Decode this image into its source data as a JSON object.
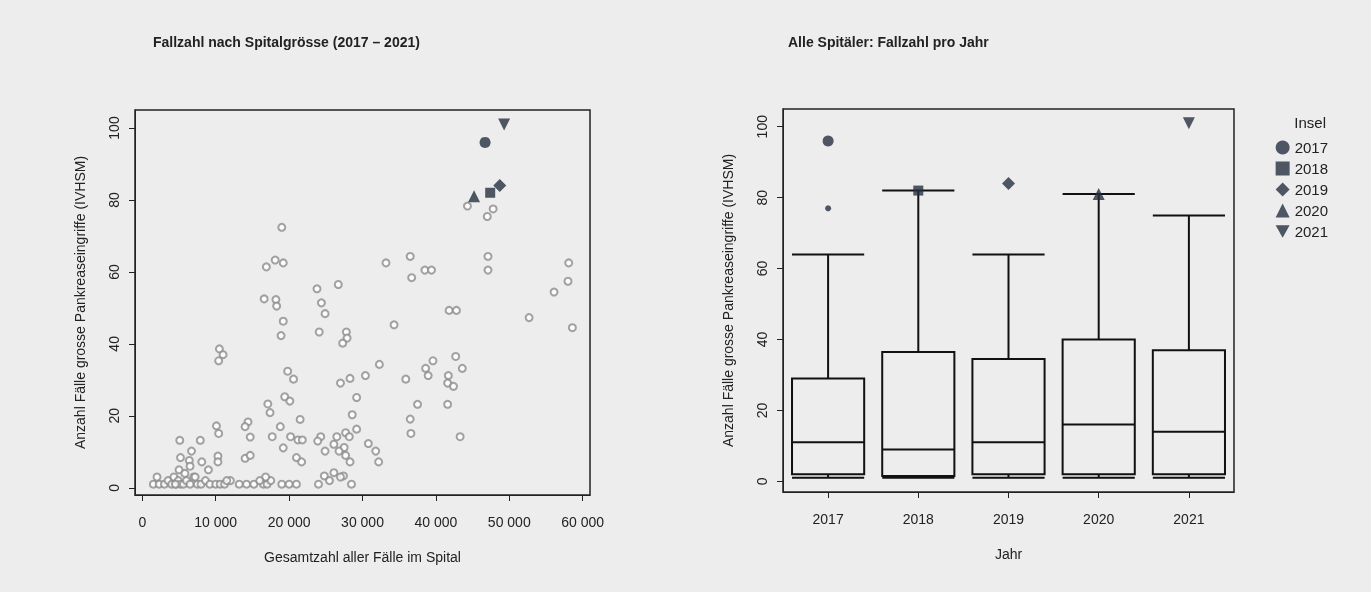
{
  "chart_data": [
    {
      "type": "scatter",
      "title": "Fallzahl nach Spitalgrösse (2017 – 2021)",
      "xlabel": "Gesamtzahl aller Fälle im Spital",
      "ylabel": "Anzahl Fälle grosse Pankreaseingriffe (IVHSM)",
      "xlim": [
        -1000,
        61000
      ],
      "ylim": [
        -2,
        105
      ],
      "xticks": [
        0,
        {
          "value": 10000,
          "label": "10 000"
        },
        {
          "value": 20000,
          "label": "20 000"
        },
        {
          "value": 30000,
          "label": "30 000"
        },
        {
          "value": 40000,
          "label": "40 000"
        },
        {
          "value": 50000,
          "label": "50 000"
        },
        {
          "value": 60000,
          "label": "60 000"
        }
      ],
      "yticks": [
        0,
        20,
        40,
        60,
        80,
        100
      ],
      "grid": false,
      "legend": false,
      "series": [
        {
          "color": "#8c8c8c",
          "marker": "circle-open",
          "x": [
            19000,
            16900,
            18100,
            19200,
            16600,
            18200,
            18300,
            19200,
            18900,
            10500,
            11000,
            10400,
            19800,
            20600,
            17100,
            17400,
            19400,
            20100,
            21500,
            18800,
            17700,
            20200,
            21200,
            21800,
            19200,
            21000,
            21700,
            10100,
            10400,
            5100,
            7900,
            6700,
            5200,
            6400,
            8100,
            10300,
            10300,
            14400,
            14000,
            14700,
            14000,
            14700,
            23800,
            26700,
            24400,
            24900,
            24100,
            27800,
            27900,
            27300,
            33200,
            36500,
            36700,
            38500,
            39400,
            34300,
            41800,
            42800,
            44300,
            47800,
            47000,
            47100,
            47100,
            58100,
            58000,
            56100,
            52700,
            58600,
            32300,
            30400,
            35900,
            28300,
            27000,
            38600,
            39600,
            38950,
            42700,
            43600,
            41700,
            41600,
            42400,
            29200,
            28600,
            37500,
            41600,
            36500,
            36600,
            43300,
            29200,
            24300,
            23900,
            27700,
            26500,
            28200,
            26100,
            27500,
            24900,
            26800,
            27700,
            28300,
            30800,
            31800,
            32200,
            26100,
            24800,
            27400,
            1500,
            2000,
            2300,
            3000,
            3500,
            4000,
            4300,
            4600,
            4900,
            5200,
            5600,
            6000,
            6500,
            7000,
            7500,
            8000,
            8600,
            9200,
            10000,
            10600,
            11200,
            12000,
            13200,
            14200,
            15200,
            16500,
            17000,
            17500,
            19000,
            20000,
            21000,
            24000,
            25500,
            27000,
            28500,
            4500,
            5000,
            5800,
            6500,
            7200,
            9000,
            11500,
            16800,
            16000
          ],
          "values": [
            72.4,
            61.4,
            63.3,
            62.5,
            52.5,
            52.3,
            50.5,
            46.3,
            42.3,
            38.6,
            37,
            35.3,
            32.4,
            30.2,
            23.3,
            20.9,
            25.3,
            24.1,
            19,
            17,
            14.2,
            14.2,
            13.3,
            13.3,
            11.1,
            8.4,
            7.2,
            17.2,
            15.1,
            13.2,
            13.2,
            10.2,
            8.4,
            7.6,
            7.2,
            8.8,
            7.2,
            18.3,
            17,
            14.1,
            8.2,
            9,
            55.3,
            56.5,
            51.4,
            48.4,
            43.3,
            43.3,
            41.6,
            40.2,
            62.5,
            64.3,
            58.4,
            60.5,
            60.5,
            45.3,
            49.3,
            49.3,
            78.3,
            77.5,
            75.4,
            64.3,
            60.5,
            62.5,
            57.4,
            54.4,
            47.3,
            44.5,
            34.3,
            31.2,
            30.2,
            30.4,
            29.1,
            33.2,
            35.3,
            31.2,
            36.5,
            33.2,
            31.2,
            29.1,
            28.2,
            25.1,
            20.3,
            23.2,
            23.2,
            19.1,
            15.1,
            14.2,
            16.3,
            14.2,
            13,
            15.3,
            14.2,
            14.2,
            12.1,
            11.2,
            10.2,
            10.2,
            9,
            7.2,
            12.3,
            10.2,
            7.2,
            4.2,
            3.3,
            3.3,
            1,
            3,
            1,
            1,
            2,
            1,
            3,
            1,
            2,
            1,
            1,
            2,
            1,
            3,
            1,
            1,
            2,
            1,
            1,
            1,
            1,
            2,
            1,
            1,
            1,
            1,
            1,
            2,
            1,
            1,
            1,
            1,
            2,
            3,
            1,
            1,
            5,
            4,
            6,
            3,
            5,
            2,
            3,
            2
          ]
        },
        {
          "color": "#263040",
          "marker": "circle",
          "x": [
            46700
          ],
          "values": [
            96
          ]
        },
        {
          "color": "#263040",
          "marker": "square",
          "x": [
            47400
          ],
          "values": [
            82
          ]
        },
        {
          "color": "#263040",
          "marker": "diamond",
          "x": [
            48700
          ],
          "values": [
            84
          ]
        },
        {
          "color": "#263040",
          "marker": "triangle",
          "x": [
            45200
          ],
          "values": [
            81
          ]
        },
        {
          "color": "#263040",
          "marker": "triangle-down",
          "x": [
            49300
          ],
          "values": [
            101
          ]
        }
      ]
    },
    {
      "type": "box",
      "title": "Alle Spitäler: Fallzahl pro Jahr",
      "xlabel": "Jahr",
      "ylabel": "Anzahl Fälle grosse Pankreaseingriffe (IVHSM)",
      "legend_title": "Insel",
      "legend": "right",
      "grid": false,
      "categories": [
        "2017",
        "2018",
        "2019",
        "2020",
        "2021"
      ],
      "ylim": [
        -3,
        105
      ],
      "yticks": [
        0,
        20,
        40,
        60,
        80,
        100
      ],
      "boxes": [
        {
          "low": 1,
          "q1": 2,
          "median": 11,
          "q3": 29,
          "high": 64,
          "outliers": [
            77
          ]
        },
        {
          "low": 1,
          "q1": 1.5,
          "median": 9,
          "q3": 36.5,
          "high": 82
        },
        {
          "low": 1,
          "q1": 2,
          "median": 11,
          "q3": 34.5,
          "high": 64
        },
        {
          "low": 1,
          "q1": 2,
          "median": 16,
          "q3": 40,
          "high": 81
        },
        {
          "low": 1,
          "q1": 2,
          "median": 14,
          "q3": 37,
          "high": 75
        }
      ],
      "series": [
        {
          "type": "scatter",
          "name": "2017",
          "color": "#263040",
          "marker": "circle",
          "values": [
            96,
            null,
            null,
            null,
            null
          ]
        },
        {
          "type": "scatter",
          "name": "2018",
          "color": "#263040",
          "marker": "square",
          "values": [
            null,
            82,
            null,
            null,
            null
          ]
        },
        {
          "type": "scatter",
          "name": "2019",
          "color": "#263040",
          "marker": "diamond",
          "values": [
            null,
            null,
            84,
            null,
            null
          ]
        },
        {
          "type": "scatter",
          "name": "2020",
          "color": "#263040",
          "marker": "triangle",
          "values": [
            null,
            null,
            null,
            81,
            null
          ]
        },
        {
          "type": "scatter",
          "name": "2021",
          "color": "#263040",
          "marker": "triangle-down",
          "values": [
            null,
            null,
            null,
            null,
            101
          ]
        }
      ]
    }
  ]
}
